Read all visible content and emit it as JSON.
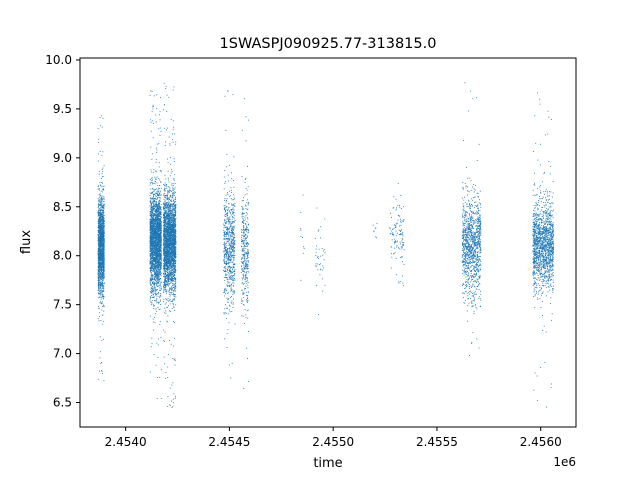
{
  "chart_data": {
    "type": "scatter",
    "title": "1SWASPJ090925.77-313815.0",
    "xlabel": "time",
    "ylabel": "flux",
    "x_offset_label": "1e6",
    "x_tick_labels": [
      "2.4540",
      "2.4545",
      "2.4550",
      "2.4555",
      "2.4560"
    ],
    "y_tick_labels": [
      "6.5",
      "7.0",
      "7.5",
      "8.0",
      "8.5",
      "9.0",
      "9.5",
      "10.0"
    ],
    "xlim": [
      2453780,
      2456170
    ],
    "ylim": [
      6.25,
      10.02
    ],
    "x_ticks": [
      2454000,
      2454500,
      2455000,
      2455500,
      2456000
    ],
    "y_ticks": [
      6.5,
      7.0,
      7.5,
      8.0,
      8.5,
      9.0,
      9.5,
      10.0
    ],
    "grid": false,
    "point_color": "#1f77b4",
    "clusters": [
      {
        "x_start": 2453865,
        "x_end": 2453895,
        "center": 8.1,
        "spread": 0.45,
        "min": 6.55,
        "max": 9.6,
        "count": 1700
      },
      {
        "x_start": 2454115,
        "x_end": 2454170,
        "center": 8.15,
        "spread": 0.45,
        "min": 6.5,
        "max": 9.75,
        "count": 2600
      },
      {
        "x_start": 2454180,
        "x_end": 2454240,
        "center": 8.15,
        "spread": 0.45,
        "min": 6.45,
        "max": 9.8,
        "count": 2800
      },
      {
        "x_start": 2454470,
        "x_end": 2454525,
        "center": 8.1,
        "spread": 0.5,
        "min": 6.6,
        "max": 9.8,
        "count": 700
      },
      {
        "x_start": 2454555,
        "x_end": 2454590,
        "center": 8.05,
        "spread": 0.5,
        "min": 6.55,
        "max": 9.8,
        "count": 350
      },
      {
        "x_start": 2454840,
        "x_end": 2454860,
        "center": 8.2,
        "spread": 0.35,
        "min": 7.7,
        "max": 8.7,
        "count": 10
      },
      {
        "x_start": 2454910,
        "x_end": 2454960,
        "center": 8.0,
        "spread": 0.35,
        "min": 7.4,
        "max": 8.55,
        "count": 40
      },
      {
        "x_start": 2455190,
        "x_end": 2455210,
        "center": 8.3,
        "spread": 0.15,
        "min": 8.1,
        "max": 8.45,
        "count": 8
      },
      {
        "x_start": 2455270,
        "x_end": 2455340,
        "center": 8.2,
        "spread": 0.35,
        "min": 7.55,
        "max": 9.2,
        "count": 120
      },
      {
        "x_start": 2455620,
        "x_end": 2455710,
        "center": 8.1,
        "spread": 0.45,
        "min": 6.6,
        "max": 9.8,
        "count": 1100
      },
      {
        "x_start": 2455960,
        "x_end": 2456060,
        "center": 8.1,
        "spread": 0.4,
        "min": 6.4,
        "max": 9.75,
        "count": 1500
      }
    ]
  }
}
